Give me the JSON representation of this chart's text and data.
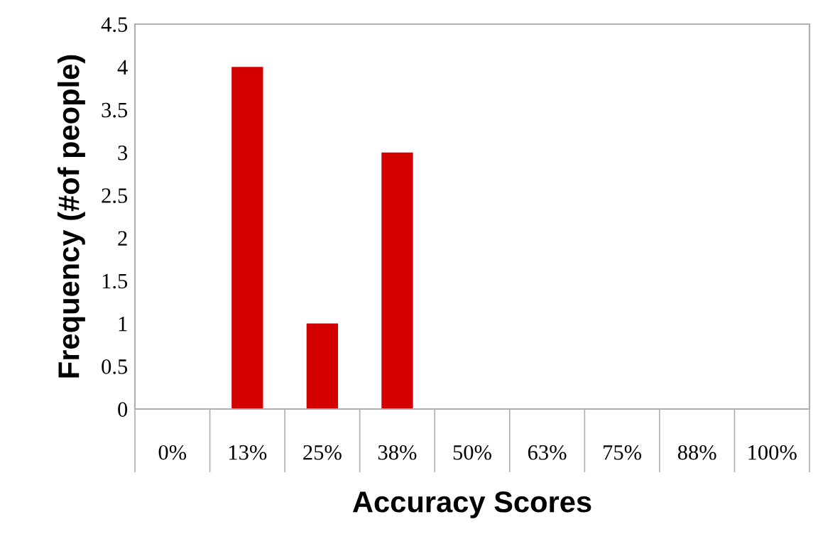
{
  "chart_data": {
    "type": "bar",
    "xlabel": "Accuracy Scores",
    "ylabel": "Frequency (#of people)",
    "categories": [
      "0%",
      "13%",
      "25%",
      "38%",
      "50%",
      "63%",
      "75%",
      "88%",
      "100%"
    ],
    "values": [
      0,
      4,
      1,
      3,
      0,
      0,
      0,
      0,
      0
    ],
    "color": "#d40000",
    "ylim": [
      0,
      4.5
    ],
    "yticks": [
      0,
      0.5,
      1,
      1.5,
      2,
      2.5,
      3,
      3.5,
      4,
      4.5
    ],
    "grid": false,
    "legend": false
  }
}
